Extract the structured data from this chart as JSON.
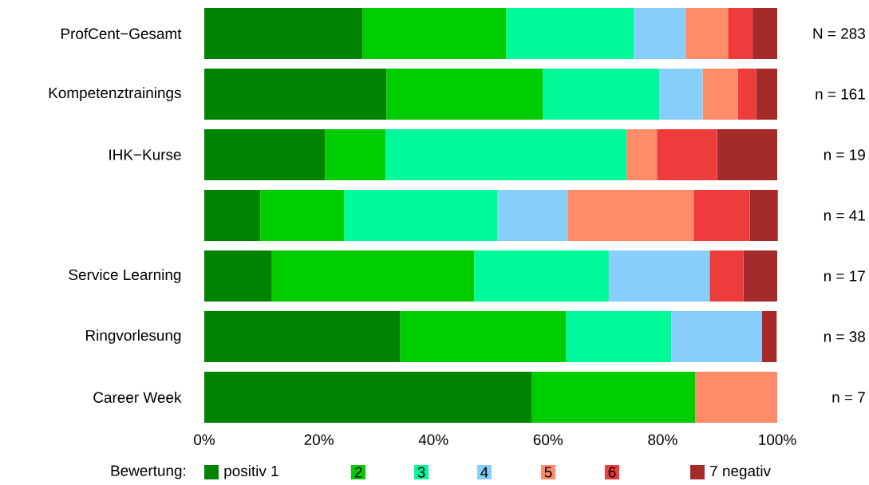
{
  "chart_data": {
    "type": "bar",
    "orientation": "horizontal",
    "stacked": true,
    "categories": [
      "ProfCent−Gesamt",
      "Kompetenztrainings",
      "IHK−Kurse",
      null,
      "Service Learning",
      "Ringvorlesung",
      "Career Week"
    ],
    "series": [
      {
        "name": "positiv  1",
        "color": "#008400",
        "values": [
          27.6,
          31.8,
          21.1,
          9.8,
          11.8,
          34.2,
          57.1
        ]
      },
      {
        "name": "2",
        "color": "#00cd00",
        "values": [
          25.1,
          27.3,
          10.5,
          14.6,
          35.3,
          28.9,
          28.6
        ]
      },
      {
        "name": "3",
        "color": "#00fa9a",
        "values": [
          22.3,
          20.3,
          42.1,
          26.8,
          23.5,
          18.4,
          0
        ]
      },
      {
        "name": "4",
        "color": "#87cefa",
        "values": [
          9.0,
          7.6,
          0,
          12.2,
          17.6,
          15.8,
          0
        ]
      },
      {
        "name": "5",
        "color": "#ff8c69",
        "values": [
          7.4,
          6.1,
          5.3,
          22.0,
          0,
          0,
          14.3
        ]
      },
      {
        "name": "6",
        "color": "#ee3b3b",
        "values": [
          4.3,
          3.2,
          10.5,
          9.8,
          5.9,
          0,
          0
        ]
      },
      {
        "name": "7  negativ",
        "color": "#a52a2a",
        "values": [
          4.3,
          3.7,
          10.5,
          4.9,
          5.9,
          2.6,
          0
        ]
      }
    ],
    "xlim": [
      0,
      100
    ],
    "xticks": [
      {
        "value": 0,
        "label": "0%"
      },
      {
        "value": 20,
        "label": "20%"
      },
      {
        "value": 40,
        "label": "40%"
      },
      {
        "value": 60,
        "label": "60%"
      },
      {
        "value": 80,
        "label": "80%"
      },
      {
        "value": 100,
        "label": "100%"
      }
    ],
    "legend": "bottom",
    "legend_title": "Bewertung:",
    "annotations": [
      "N = 283",
      "n = 161",
      "n = 19",
      "n = 41",
      "n = 17",
      "n = 38",
      "n = 7"
    ]
  }
}
